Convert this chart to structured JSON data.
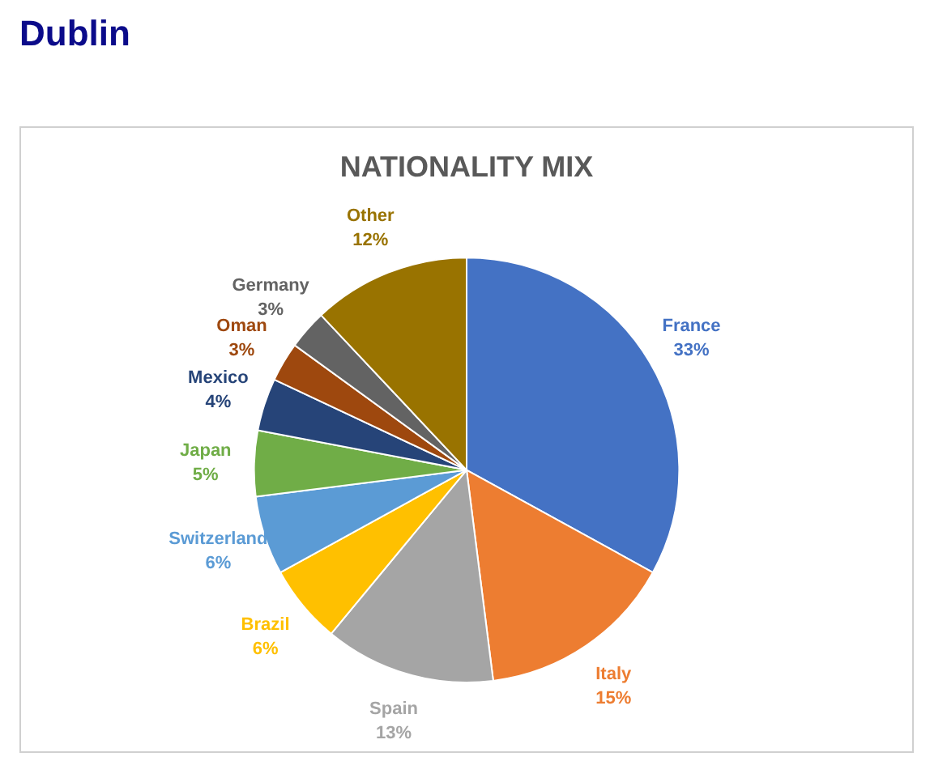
{
  "chart_data": {
    "type": "pie",
    "title": "NATIONALITY MIX",
    "annotations": [
      "Dublin"
    ],
    "categories": [
      "France",
      "Italy",
      "Spain",
      "Brazil",
      "Switzerland",
      "Japan",
      "Mexico",
      "Oman",
      "Germany",
      "Other"
    ],
    "values": [
      33,
      15,
      13,
      6,
      6,
      5,
      4,
      3,
      3,
      12
    ],
    "colors": [
      "#4472c4",
      "#ed7d31",
      "#a5a5a5",
      "#ffc000",
      "#5b9bd5",
      "#70ad47",
      "#264478",
      "#9e480e",
      "#636363",
      "#997300"
    ],
    "value_labels": [
      "33%",
      "15%",
      "13%",
      "6%",
      "6%",
      "5%",
      "4%",
      "3%",
      "3%",
      "12%"
    ],
    "legend": false
  }
}
